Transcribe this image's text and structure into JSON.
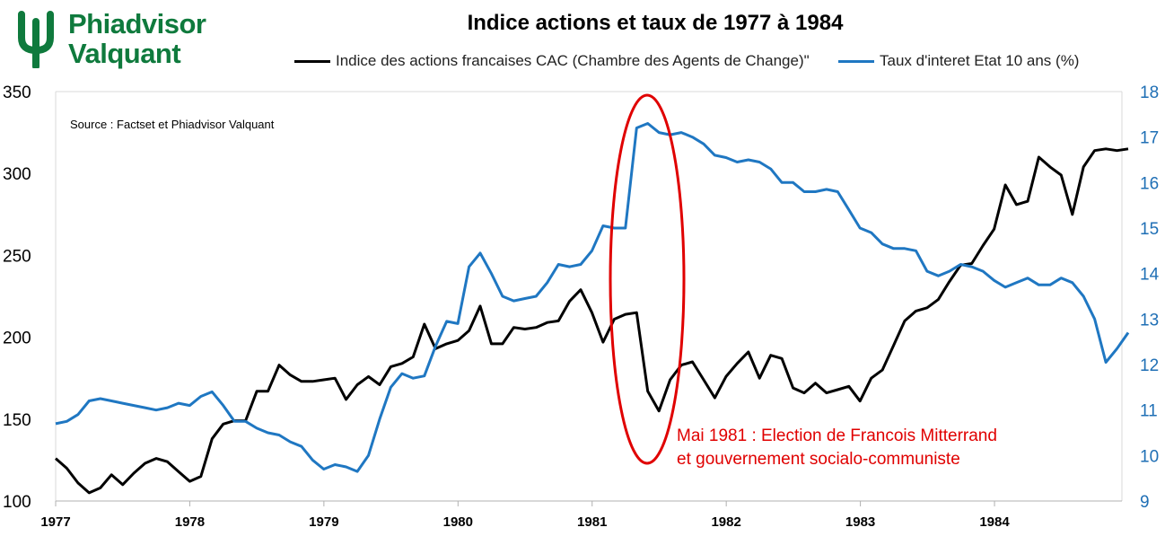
{
  "logo": {
    "line1": "Phiadvisor",
    "line2": "Valquant",
    "brand_color": "#0f7a3d"
  },
  "chart_data": {
    "type": "line",
    "title": "Indice actions et taux de 1977 à 1984",
    "source_note": "Source : Factset et Phiadvisor Valquant",
    "annotation": {
      "line1": "Mai 1981 : Election de Francois Mitterrand",
      "line2": "et gouvernement socialo-communiste",
      "color": "#e00000"
    },
    "x_ticks": [
      "1977",
      "1978",
      "1979",
      "1980",
      "1981",
      "1982",
      "1983",
      "1984"
    ],
    "x_range": [
      1977,
      1984.95
    ],
    "y_left": {
      "ticks": [
        "350",
        "300",
        "250",
        "200",
        "150",
        "100"
      ],
      "range": [
        100,
        350
      ]
    },
    "y_right": {
      "ticks": [
        "18",
        "17",
        "16",
        "15",
        "14",
        "13",
        "12",
        "11",
        "10",
        "9"
      ],
      "range": [
        9,
        18
      ],
      "color": "#1f6fb5"
    },
    "grid": false,
    "legend_position": "top",
    "series": [
      {
        "name": "Indice des actions francaises CAC (Chambre des Agents de Change)\"",
        "color": "#000000",
        "axis": "left",
        "start": 1977,
        "step": 0.0833,
        "values": [
          126,
          120,
          111,
          105,
          108,
          116,
          110,
          117,
          123,
          126,
          124,
          118,
          112,
          115,
          138,
          147,
          149,
          149,
          167,
          167,
          183,
          177,
          173,
          173,
          174,
          175,
          162,
          171,
          176,
          171,
          182,
          184,
          188,
          208,
          193,
          196,
          198,
          204,
          219,
          196,
          196,
          206,
          205,
          206,
          209,
          210,
          222,
          229,
          215,
          197,
          211,
          214,
          215,
          167,
          155,
          174,
          183,
          185,
          174,
          163,
          176,
          184,
          191,
          175,
          189,
          187,
          169,
          166,
          172,
          166,
          168,
          170,
          161,
          175,
          180,
          195,
          210,
          216,
          218,
          223,
          234,
          244,
          245,
          256,
          266,
          293,
          281,
          283,
          310,
          304,
          299,
          275,
          304,
          314,
          315,
          314,
          315
        ]
      },
      {
        "name": "Taux d'interet Etat 10 ans (%)",
        "color": "#1f77c2",
        "axis": "right",
        "start": 1977,
        "step": 0.0833,
        "values": [
          10.7,
          10.75,
          10.9,
          11.2,
          11.25,
          11.2,
          11.15,
          11.1,
          11.05,
          11.0,
          11.05,
          11.15,
          11.1,
          11.3,
          11.4,
          11.1,
          10.75,
          10.75,
          10.6,
          10.5,
          10.45,
          10.3,
          10.2,
          9.9,
          9.7,
          9.8,
          9.75,
          9.65,
          10.0,
          10.8,
          11.5,
          11.8,
          11.7,
          11.75,
          12.4,
          12.95,
          12.9,
          14.15,
          14.45,
          14.0,
          13.5,
          13.4,
          13.45,
          13.5,
          13.8,
          14.2,
          14.15,
          14.2,
          14.5,
          15.05,
          15.0,
          15.0,
          17.2,
          17.3,
          17.1,
          17.05,
          17.1,
          17.0,
          16.85,
          16.6,
          16.55,
          16.45,
          16.5,
          16.45,
          16.3,
          16.0,
          16.0,
          15.8,
          15.8,
          15.85,
          15.8,
          15.4,
          15.0,
          14.9,
          14.65,
          14.55,
          14.55,
          14.5,
          14.05,
          13.95,
          14.05,
          14.2,
          14.15,
          14.05,
          13.85,
          13.7,
          13.8,
          13.9,
          13.75,
          13.75,
          13.9,
          13.8,
          13.5,
          13.0,
          12.05,
          12.35,
          12.7
        ]
      }
    ]
  }
}
